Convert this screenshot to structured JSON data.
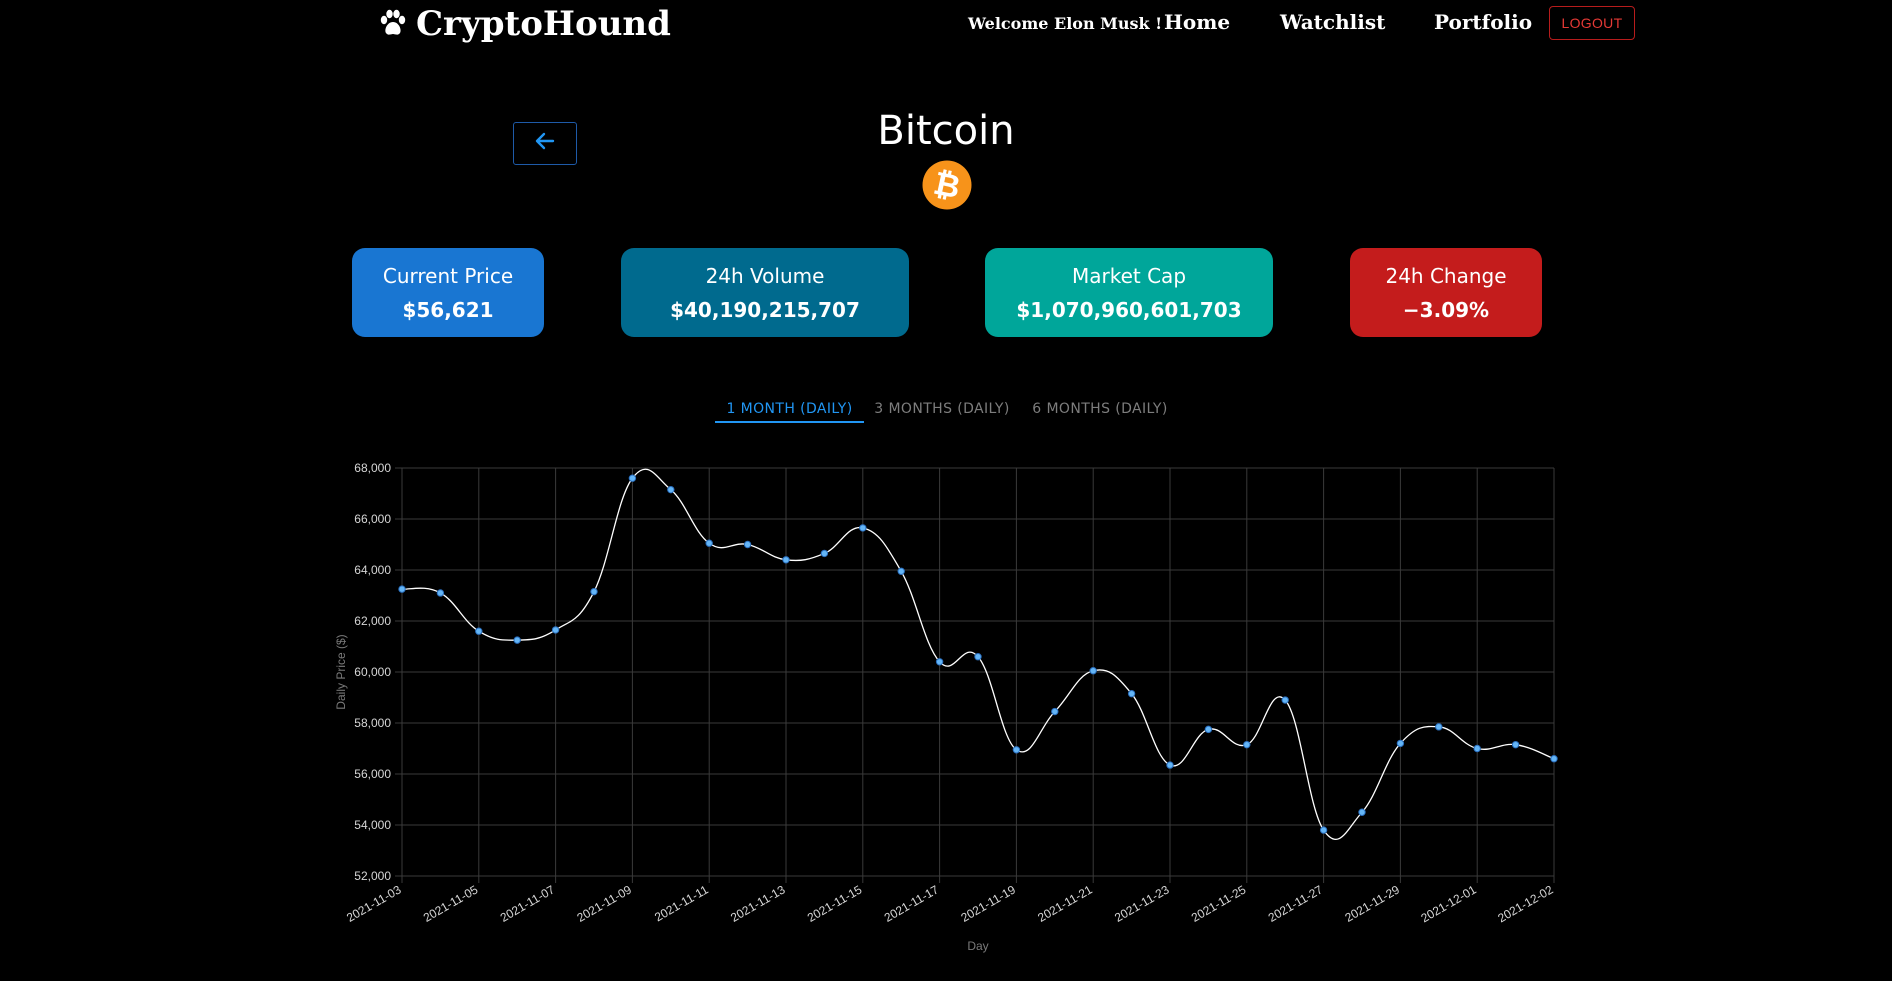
{
  "header": {
    "brand": "CryptoHound",
    "welcome": "Welcome Elon Musk !",
    "nav": [
      "Home",
      "Watchlist",
      "Portfolio"
    ],
    "logout_label": "LOGOUT",
    "icons": {
      "brand_icon": "paw-icon"
    }
  },
  "coin": {
    "name": "Bitcoin",
    "logo_icon": "bitcoin-logo-icon",
    "back_icon": "arrow-left-icon"
  },
  "stats": [
    {
      "label": "Current Price",
      "value": "$56,621",
      "color": "#1976d2"
    },
    {
      "label": "24h Volume",
      "value": "$40,190,215,707",
      "color": "#006a8e"
    },
    {
      "label": "Market Cap",
      "value": "$1,070,960,601,703",
      "color": "#00a69a"
    },
    {
      "label": "24h Change",
      "value": "−3.09%",
      "color": "#c41c1c"
    }
  ],
  "tabs": [
    {
      "label": "1 MONTH (DAILY)",
      "active": true
    },
    {
      "label": "3 MONTHS (DAILY)",
      "active": false
    },
    {
      "label": "6 MONTHS (DAILY)",
      "active": false
    }
  ],
  "chart_data": {
    "type": "line",
    "xlabel": "Day",
    "ylabel": "Daily Price ($)",
    "ylim": [
      52000,
      68000
    ],
    "yticks": [
      52000,
      54000,
      56000,
      58000,
      60000,
      62000,
      64000,
      66000,
      68000
    ],
    "grid": true,
    "line_color": "#ffffff",
    "point_color": "#64b5f6",
    "x": [
      "2021-11-03",
      "2021-11-04",
      "2021-11-05",
      "2021-11-06",
      "2021-11-07",
      "2021-11-08",
      "2021-11-09",
      "2021-11-10",
      "2021-11-11",
      "2021-11-12",
      "2021-11-13",
      "2021-11-14",
      "2021-11-15",
      "2021-11-16",
      "2021-11-17",
      "2021-11-18",
      "2021-11-19",
      "2021-11-20",
      "2021-11-21",
      "2021-11-22",
      "2021-11-23",
      "2021-11-24",
      "2021-11-25",
      "2021-11-26",
      "2021-11-27",
      "2021-11-28",
      "2021-11-29",
      "2021-11-30",
      "2021-12-01",
      "2021-12-01",
      "2021-12-02"
    ],
    "x_tick_labels": [
      "2021-11-03",
      "2021-11-05",
      "2021-11-07",
      "2021-11-09",
      "2021-11-11",
      "2021-11-13",
      "2021-11-15",
      "2021-11-17",
      "2021-11-19",
      "2021-11-21",
      "2021-11-23",
      "2021-11-25",
      "2021-11-27",
      "2021-11-29",
      "2021-12-01",
      "2021-12-02"
    ],
    "series": [
      {
        "values": [
          63250,
          63100,
          61600,
          61250,
          61650,
          63150,
          67600,
          67150,
          65050,
          65000,
          64400,
          64650,
          65650,
          63950,
          60400,
          60600,
          56950,
          58450,
          60050,
          59150,
          56350,
          57750,
          57150,
          58900,
          53800,
          54500,
          57200,
          57850,
          57000,
          57150,
          56600
        ]
      }
    ]
  }
}
